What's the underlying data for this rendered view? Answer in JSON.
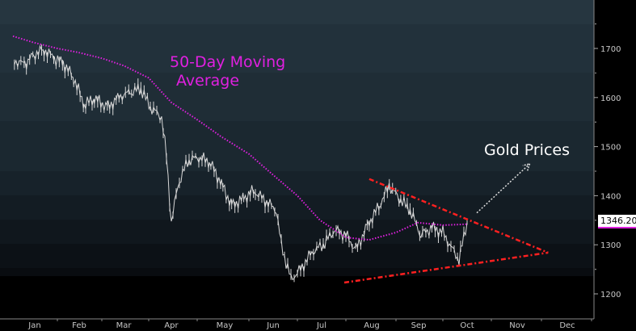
{
  "chart_data": {
    "type": "line",
    "title": "",
    "xlabel": "",
    "ylabel": "",
    "x_ticks": [
      "Jan",
      "Feb",
      "Mar",
      "Apr",
      "May",
      "Jun",
      "Jul",
      "Aug",
      "Sep",
      "Oct",
      "Nov",
      "Dec"
    ],
    "y_ticks": [
      1200,
      1300,
      1400,
      1500,
      1600,
      1700
    ],
    "ylim": [
      1160,
      1765
    ],
    "y_axis_side": "right",
    "grid": false,
    "last_price_label": "1346.20",
    "colors": {
      "price": "#d8d8d8",
      "ma": "#e020e0",
      "trend": "#ff2020",
      "arrow": "#dddddd",
      "label_ma": "#e020e0",
      "label_gold": "#ffffff"
    },
    "series": [
      {
        "name": "Gold Prices",
        "style": "bars",
        "x": [
          "01-02",
          "01-09",
          "01-16",
          "01-22",
          "01-29",
          "02-05",
          "02-12",
          "02-19",
          "02-26",
          "03-05",
          "03-12",
          "03-19",
          "03-26",
          "04-02",
          "04-09",
          "04-12",
          "04-15",
          "04-19",
          "04-25",
          "05-01",
          "05-08",
          "05-15",
          "05-21",
          "05-28",
          "06-04",
          "06-11",
          "06-18",
          "06-21",
          "06-27",
          "07-03",
          "07-10",
          "07-17",
          "07-24",
          "07-31",
          "08-07",
          "08-14",
          "08-21",
          "08-27",
          "09-03",
          "09-10",
          "09-17",
          "09-24",
          "10-01",
          "10-07",
          "10-11",
          "10-16"
        ],
        "values": [
          1675,
          1668,
          1690,
          1697,
          1680,
          1670,
          1640,
          1585,
          1598,
          1580,
          1602,
          1610,
          1618,
          1580,
          1560,
          1480,
          1345,
          1420,
          1470,
          1478,
          1470,
          1425,
          1380,
          1395,
          1410,
          1390,
          1370,
          1300,
          1230,
          1250,
          1285,
          1300,
          1330,
          1320,
          1290,
          1340,
          1380,
          1420,
          1395,
          1370,
          1320,
          1335,
          1325,
          1290,
          1270,
          1346
        ]
      },
      {
        "name": "50-Day Moving Average",
        "style": "dotted",
        "x": [
          "01-01",
          "01-15",
          "02-01",
          "02-15",
          "03-01",
          "03-15",
          "04-01",
          "04-15",
          "05-01",
          "05-15",
          "06-01",
          "06-15",
          "07-01",
          "07-15",
          "08-01",
          "08-15",
          "09-01",
          "09-15",
          "10-01",
          "10-16"
        ],
        "values": [
          1725,
          1712,
          1700,
          1692,
          1680,
          1665,
          1640,
          1590,
          1555,
          1520,
          1485,
          1445,
          1400,
          1350,
          1315,
          1310,
          1325,
          1345,
          1340,
          1342
        ]
      }
    ],
    "annotations": [
      {
        "text": "50-Day Moving Average",
        "line1": "50-Day Moving",
        "line2": "Average"
      },
      {
        "text": "Gold Prices"
      }
    ],
    "trend_lines": [
      {
        "from": [
          "08-15",
          1434
        ],
        "to": [
          "12-05",
          1284
        ]
      },
      {
        "from": [
          "07-30",
          1223
        ],
        "to": [
          "12-05",
          1284
        ]
      }
    ],
    "arrow": {
      "from": [
        "10-22",
        1365
      ],
      "to": [
        "11-24",
        1465
      ]
    }
  }
}
